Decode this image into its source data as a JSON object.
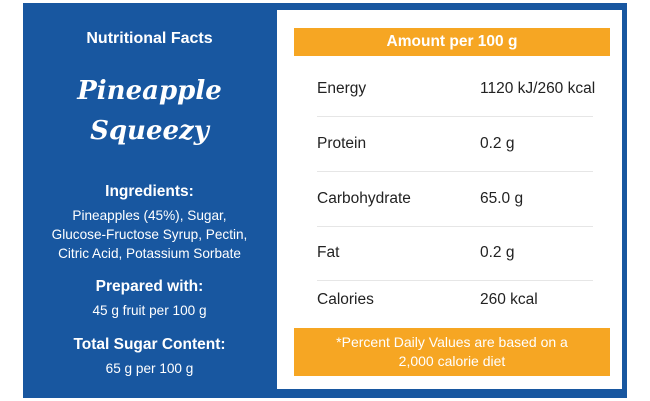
{
  "left_panel": {
    "title": "Nutritional Facts",
    "product_name_line1": "Pineapple",
    "product_name_line2": "Squeezy",
    "ingredients_heading": "Ingredients:",
    "ingredients_lines": [
      "Pineapples (45%), Sugar,",
      "Glucose-Fructose Syrup, Pectin,",
      "Citric Acid, Potassium Sorbate"
    ],
    "prepared_heading": "Prepared with:",
    "prepared_text": "45 g fruit per 100 g",
    "sugar_heading": "Total Sugar Content:",
    "sugar_text": "65 g per 100 g"
  },
  "table": {
    "header": "Amount per 100 g",
    "rows": [
      {
        "name": "Energy",
        "value": "1120 kJ/260 kcal"
      },
      {
        "name": "Protein",
        "value": "0.2 g"
      },
      {
        "name": "Carbohydrate",
        "value": "65.0 g"
      },
      {
        "name": "Fat",
        "value": "0.2 g"
      },
      {
        "name": "Calories",
        "value": "260 kcal"
      }
    ],
    "footnote_line1": "*Percent Daily Values are based on a",
    "footnote_line2": "2,000 calorie diet"
  },
  "colors": {
    "primary_blue": "#1857a0",
    "accent_orange": "#f6a623",
    "text_dark": "#222222"
  }
}
